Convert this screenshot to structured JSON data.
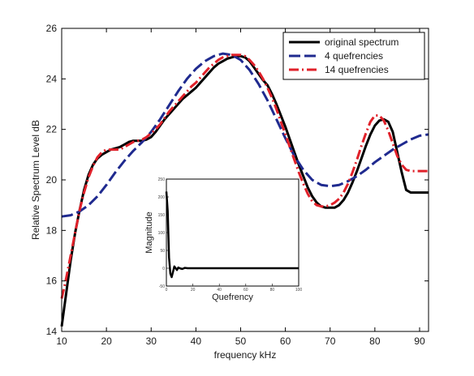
{
  "chart_data": [
    {
      "type": "line",
      "title": "",
      "xlabel": "frequency kHz",
      "ylabel": "Relative Spectrum Level dB",
      "xlim": [
        10,
        92
      ],
      "ylim": [
        14,
        26
      ],
      "xticks": [
        10,
        20,
        30,
        40,
        50,
        60,
        70,
        80,
        90
      ],
      "yticks": [
        14,
        16,
        18,
        20,
        22,
        24,
        26
      ],
      "grid": false,
      "legend_position": "top-right",
      "series": [
        {
          "name": "original spectrum",
          "color": "#000000",
          "style": "solid",
          "x": [
            10,
            11,
            12,
            13,
            14,
            15,
            16,
            17,
            18,
            19,
            20,
            21,
            22,
            23,
            24,
            25,
            26,
            27,
            28,
            29,
            30,
            31,
            32,
            33,
            34,
            35,
            36,
            37,
            38,
            39,
            40,
            41,
            42,
            43,
            44,
            45,
            46,
            47,
            48,
            49,
            50,
            51,
            52,
            53,
            54,
            55,
            56,
            57,
            58,
            59,
            60,
            61,
            62,
            63,
            64,
            65,
            66,
            67,
            68,
            69,
            70,
            71,
            72,
            73,
            74,
            75,
            76,
            77,
            78,
            79,
            80,
            81,
            82,
            83,
            84,
            85,
            86,
            87,
            88,
            89,
            90,
            91,
            92
          ],
          "y": [
            14.2,
            15.5,
            16.8,
            17.9,
            18.8,
            19.6,
            20.2,
            20.6,
            20.85,
            21.0,
            21.1,
            21.2,
            21.25,
            21.3,
            21.4,
            21.5,
            21.55,
            21.55,
            21.55,
            21.6,
            21.7,
            21.9,
            22.15,
            22.4,
            22.6,
            22.8,
            23.0,
            23.2,
            23.35,
            23.5,
            23.65,
            23.85,
            24.05,
            24.25,
            24.45,
            24.6,
            24.7,
            24.8,
            24.85,
            24.9,
            24.9,
            24.85,
            24.7,
            24.45,
            24.2,
            23.95,
            23.75,
            23.4,
            23.0,
            22.55,
            22.1,
            21.6,
            21.1,
            20.6,
            20.15,
            19.7,
            19.35,
            19.1,
            18.95,
            18.9,
            18.9,
            18.9,
            19.0,
            19.2,
            19.5,
            19.9,
            20.35,
            20.85,
            21.35,
            21.8,
            22.15,
            22.35,
            22.4,
            22.3,
            21.9,
            21.1,
            20.3,
            19.6,
            19.5,
            19.5,
            19.5,
            19.5,
            19.5
          ]
        },
        {
          "name": "4 quefrencies",
          "color": "#1f2a8f",
          "style": "dashed",
          "x": [
            10,
            12,
            14,
            16,
            18,
            20,
            22,
            24,
            26,
            28,
            30,
            32,
            34,
            36,
            38,
            40,
            42,
            44,
            46,
            48,
            50,
            52,
            54,
            56,
            58,
            60,
            62,
            64,
            66,
            68,
            70,
            72,
            74,
            76,
            78,
            80,
            82,
            84,
            86,
            88,
            90,
            92
          ],
          "y": [
            18.55,
            18.6,
            18.75,
            19.0,
            19.35,
            19.8,
            20.3,
            20.75,
            21.15,
            21.5,
            21.9,
            22.4,
            22.95,
            23.5,
            24.0,
            24.4,
            24.7,
            24.9,
            25.0,
            24.95,
            24.75,
            24.35,
            23.8,
            23.15,
            22.4,
            21.65,
            20.95,
            20.4,
            20.0,
            19.8,
            19.75,
            19.8,
            19.95,
            20.15,
            20.4,
            20.7,
            20.95,
            21.2,
            21.4,
            21.6,
            21.75,
            21.8
          ]
        },
        {
          "name": "14 quefrencies",
          "color": "#e0212a",
          "style": "dash-dot",
          "x": [
            10,
            11,
            12,
            13,
            14,
            15,
            16,
            17,
            18,
            19,
            20,
            21,
            22,
            23,
            24,
            25,
            26,
            27,
            28,
            29,
            30,
            31,
            32,
            33,
            34,
            35,
            36,
            37,
            38,
            39,
            40,
            41,
            42,
            43,
            44,
            45,
            46,
            47,
            48,
            49,
            50,
            51,
            52,
            53,
            54,
            55,
            56,
            57,
            58,
            59,
            60,
            61,
            62,
            63,
            64,
            65,
            66,
            67,
            68,
            69,
            70,
            71,
            72,
            73,
            74,
            75,
            76,
            77,
            78,
            79,
            80,
            81,
            82,
            83,
            84,
            85,
            86,
            87,
            88,
            89,
            90,
            91,
            92
          ],
          "y": [
            15.3,
            16.1,
            17.0,
            17.9,
            18.8,
            19.5,
            20.1,
            20.55,
            20.9,
            21.1,
            21.2,
            21.2,
            21.2,
            21.2,
            21.3,
            21.4,
            21.5,
            21.55,
            21.6,
            21.7,
            21.85,
            22.0,
            22.2,
            22.45,
            22.7,
            22.9,
            23.1,
            23.3,
            23.5,
            23.7,
            23.85,
            24.05,
            24.25,
            24.45,
            24.6,
            24.75,
            24.85,
            24.9,
            24.95,
            24.95,
            24.95,
            24.9,
            24.75,
            24.55,
            24.3,
            24.0,
            23.65,
            23.25,
            22.8,
            22.3,
            21.8,
            21.3,
            20.8,
            20.3,
            19.85,
            19.45,
            19.15,
            19.0,
            18.95,
            18.95,
            19.0,
            19.1,
            19.25,
            19.5,
            19.85,
            20.3,
            20.8,
            21.35,
            21.85,
            22.3,
            22.55,
            22.55,
            22.35,
            21.95,
            21.45,
            20.95,
            20.6,
            20.4,
            20.35,
            20.35,
            20.35,
            20.35,
            20.35
          ]
        }
      ]
    },
    {
      "type": "line",
      "title": "",
      "xlabel": "Quefrency",
      "ylabel": "Magnitude",
      "xlim": [
        0,
        100
      ],
      "ylim": [
        -50,
        250
      ],
      "xticks": [
        0,
        20,
        40,
        60,
        80,
        100
      ],
      "yticks": [
        -50,
        0,
        50,
        100,
        150,
        200,
        250
      ],
      "grid": false,
      "series": [
        {
          "color": "#000000",
          "style": "solid",
          "x": [
            0,
            1,
            2,
            3,
            4,
            5,
            6,
            7,
            8,
            9,
            10,
            12,
            14,
            16,
            20,
            30,
            40,
            50,
            60,
            70,
            80,
            90,
            100
          ],
          "y": [
            215,
            160,
            30,
            -15,
            -25,
            -10,
            5,
            0,
            -5,
            2,
            0,
            -2,
            1,
            0,
            0,
            0,
            0,
            0,
            0,
            0,
            0,
            0,
            0
          ]
        }
      ]
    }
  ]
}
